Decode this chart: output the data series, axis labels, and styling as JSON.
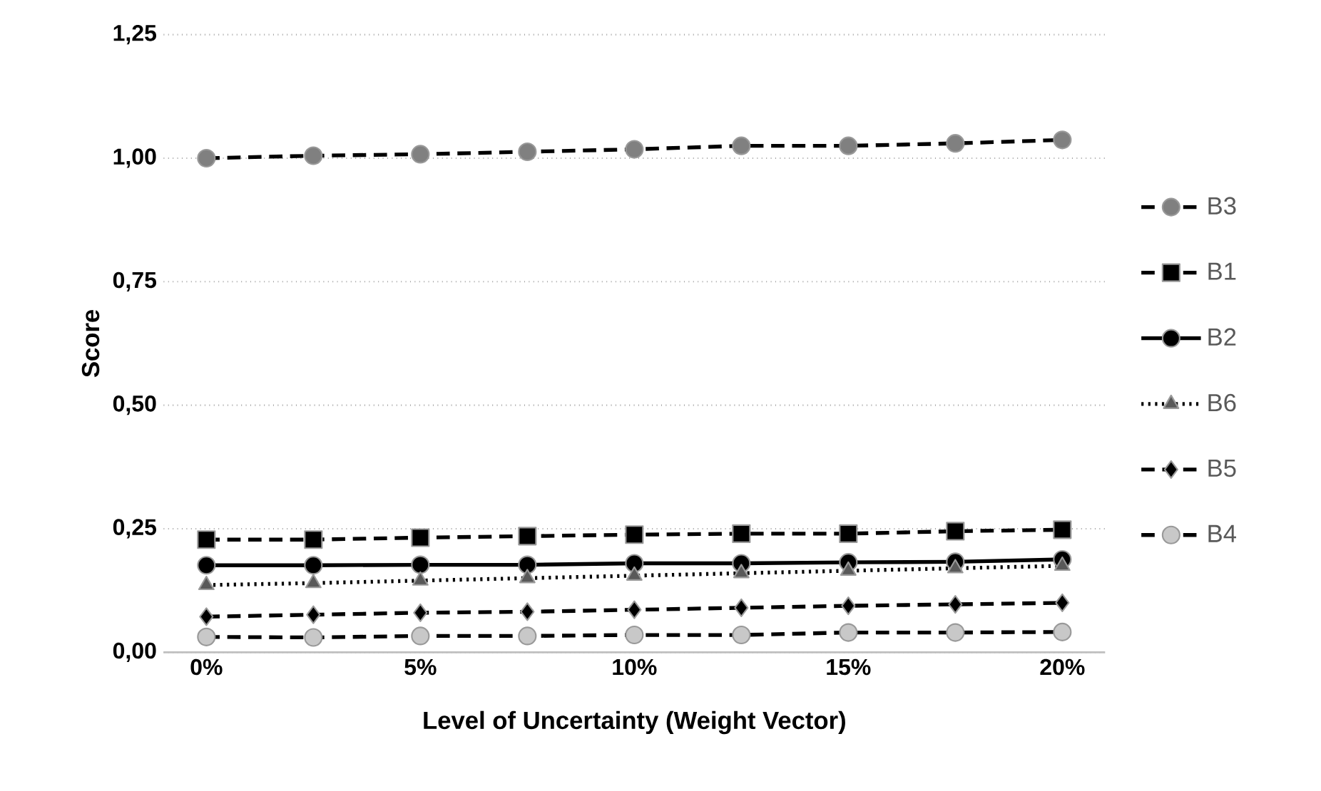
{
  "chart_data": {
    "type": "line",
    "xlabel": "Level of Uncertainty (Weight Vector)",
    "ylabel": "Score",
    "x": [
      0,
      2.5,
      5,
      7.5,
      10,
      12.5,
      15,
      17.5,
      20
    ],
    "xlim": [
      -1,
      21
    ],
    "xticks": [
      {
        "value": 0,
        "label": "0%"
      },
      {
        "value": 5,
        "label": "5%"
      },
      {
        "value": 10,
        "label": "10%"
      },
      {
        "value": 15,
        "label": "15%"
      },
      {
        "value": 20,
        "label": "20%"
      }
    ],
    "ylim": [
      0,
      1.25
    ],
    "yticks": [
      {
        "value": 0,
        "label": "0,00"
      },
      {
        "value": 0.25,
        "label": "0,25"
      },
      {
        "value": 0.5,
        "label": "0,50"
      },
      {
        "value": 0.75,
        "label": "0,75"
      },
      {
        "value": 1,
        "label": "1,00"
      },
      {
        "value": 1.25,
        "label": "1,25"
      }
    ],
    "grid": "y",
    "legend": "right",
    "series": [
      {
        "name": "B3",
        "color": "#808080",
        "marker": "circle",
        "line_style": "dashed",
        "values": [
          1.0,
          1.005,
          1.008,
          1.013,
          1.018,
          1.025,
          1.025,
          1.03,
          1.037
        ]
      },
      {
        "name": "B1",
        "color": "#000000",
        "marker": "square",
        "line_style": "dashed",
        "values": [
          0.228,
          0.228,
          0.232,
          0.235,
          0.238,
          0.24,
          0.24,
          0.245,
          0.248
        ]
      },
      {
        "name": "B2",
        "color": "#000000",
        "marker": "circle",
        "line_style": "solid",
        "values": [
          0.176,
          0.176,
          0.177,
          0.177,
          0.18,
          0.18,
          0.182,
          0.183,
          0.188
        ]
      },
      {
        "name": "B6",
        "color": "#595959",
        "marker": "triangle",
        "line_style": "dotted",
        "values": [
          0.136,
          0.14,
          0.145,
          0.15,
          0.155,
          0.16,
          0.165,
          0.17,
          0.175
        ]
      },
      {
        "name": "B5",
        "color": "#000000",
        "marker": "diamond",
        "line_style": "dashed",
        "values": [
          0.072,
          0.076,
          0.08,
          0.082,
          0.086,
          0.09,
          0.094,
          0.097,
          0.1
        ]
      },
      {
        "name": "B4",
        "color": "#c8c8c8",
        "marker": "circle",
        "line_style": "dashed",
        "values": [
          0.031,
          0.03,
          0.033,
          0.033,
          0.035,
          0.035,
          0.04,
          0.04,
          0.041
        ]
      }
    ]
  }
}
